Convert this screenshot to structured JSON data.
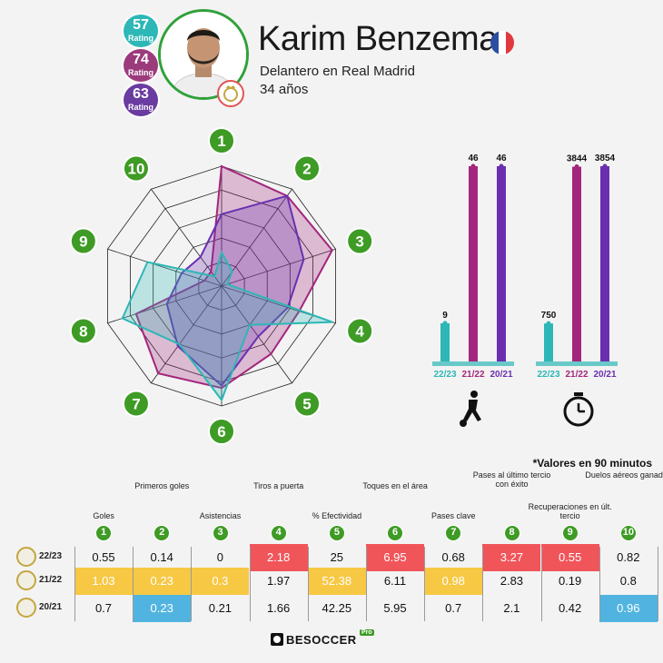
{
  "player": {
    "name": "Karim Benzema",
    "role": "Delantero en Real Madrid",
    "age": "34 años",
    "ratings": [
      {
        "value": "57",
        "label": "Rating",
        "color": "#2db7b6"
      },
      {
        "value": "74",
        "label": "Rating",
        "color": "#9c3b7c"
      },
      {
        "value": "63",
        "label": "Rating",
        "color": "#6a3ba0"
      }
    ]
  },
  "colors": {
    "s2223": "#2db7b6",
    "s2122": "#a3267c",
    "s2021": "#6a2fb0",
    "green": "#3e9b25",
    "hi_red": "#f0555a",
    "hi_yellow": "#f7c844",
    "hi_blue": "#51b4e0"
  },
  "note": "*Valores en 90 minutos",
  "chart_data": [
    {
      "type": "radar",
      "axes": [
        "1",
        "2",
        "3",
        "4",
        "5",
        "6",
        "7",
        "8",
        "9",
        "10"
      ],
      "rmax": 1,
      "series": [
        {
          "name": "22/23",
          "values": [
            0.28,
            0.15,
            0.05,
            0.97,
            0.4,
            0.95,
            0.6,
            0.87,
            0.65,
            0.1
          ]
        },
        {
          "name": "21/22",
          "values": [
            1.0,
            0.93,
            0.97,
            0.68,
            0.7,
            0.85,
            0.9,
            0.75,
            0.15,
            0.15
          ]
        },
        {
          "name": "20/21",
          "values": [
            0.6,
            0.93,
            0.72,
            0.58,
            0.52,
            0.83,
            0.62,
            0.48,
            0.35,
            0.3
          ]
        }
      ]
    },
    {
      "type": "bar",
      "icon": "football-player-icon",
      "categories": [
        "22/23",
        "21/22",
        "20/21"
      ],
      "values": [
        9,
        46,
        46
      ],
      "value_labels": [
        "9",
        "46",
        "46"
      ]
    },
    {
      "type": "bar",
      "icon": "stopwatch-icon",
      "categories": [
        "22/23",
        "21/22",
        "20/21"
      ],
      "values": [
        750,
        3844,
        3854
      ],
      "value_labels": [
        "750",
        "3844",
        "3854"
      ]
    },
    {
      "type": "table",
      "columns": [
        {
          "num": "1",
          "label": "Goles"
        },
        {
          "num": "2",
          "label": "Primeros goles"
        },
        {
          "num": "3",
          "label": "Asistencias"
        },
        {
          "num": "4",
          "label": "Tiros a puerta"
        },
        {
          "num": "5",
          "label": "% Efectividad"
        },
        {
          "num": "6",
          "label": "Toques en el área"
        },
        {
          "num": "7",
          "label": "Pases clave"
        },
        {
          "num": "8",
          "label": "Pases al último tercio con éxito"
        },
        {
          "num": "9",
          "label": "Recuperaciones en últ. tercio"
        },
        {
          "num": "10",
          "label": "Duelos aéreos ganados"
        }
      ],
      "rows": [
        {
          "season": "22/23",
          "values": [
            "0.55",
            "0.14",
            "0",
            "2.18",
            "25",
            "6.95",
            "0.68",
            "3.27",
            "0.55",
            "0.82"
          ],
          "highlight": [
            "",
            "",
            "",
            "red",
            "",
            "red",
            "",
            "red",
            "red",
            ""
          ]
        },
        {
          "season": "21/22",
          "values": [
            "1.03",
            "0.23",
            "0.3",
            "1.97",
            "52.38",
            "6.11",
            "0.98",
            "2.83",
            "0.19",
            "0.8"
          ],
          "highlight": [
            "yellow",
            "yellow",
            "yellow",
            "",
            "yellow",
            "",
            "yellow",
            "",
            "",
            ""
          ]
        },
        {
          "season": "20/21",
          "values": [
            "0.7",
            "0.23",
            "0.21",
            "1.66",
            "42.25",
            "5.95",
            "0.7",
            "2.1",
            "0.42",
            "0.96"
          ],
          "highlight": [
            "",
            "blue",
            "",
            "",
            "",
            "",
            "",
            "",
            "",
            "blue"
          ]
        }
      ]
    }
  ],
  "logo": {
    "text": "BESOCCER",
    "badge": "Pro"
  }
}
